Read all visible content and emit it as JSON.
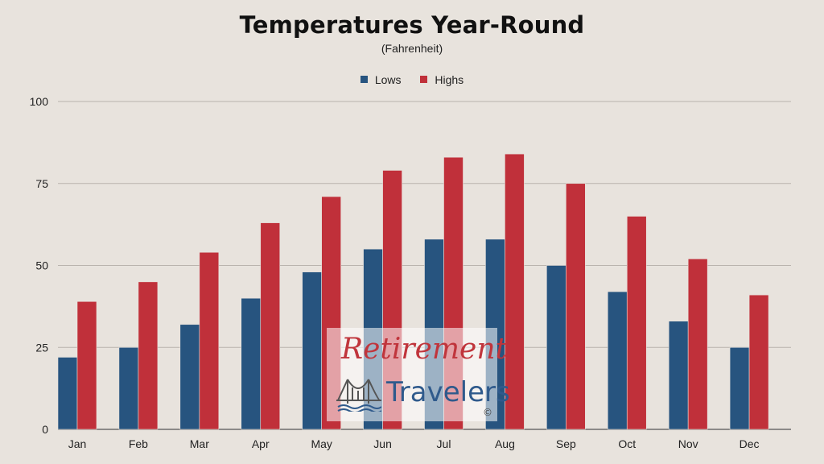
{
  "chart_data": {
    "type": "bar",
    "title": "Temperatures Year-Round",
    "subtitle": "(Fahrenheit)",
    "categories": [
      "Jan",
      "Feb",
      "Mar",
      "Apr",
      "May",
      "Jun",
      "Jul",
      "Aug",
      "Sep",
      "Oct",
      "Nov",
      "Dec"
    ],
    "series": [
      {
        "name": "Lows",
        "color": "#27547f",
        "values": [
          22,
          25,
          32,
          40,
          48,
          55,
          58,
          58,
          50,
          42,
          33,
          25
        ]
      },
      {
        "name": "Highs",
        "color": "#c0303a",
        "values": [
          39,
          45,
          54,
          63,
          71,
          79,
          83,
          84,
          75,
          65,
          52,
          41
        ]
      }
    ],
    "yticks": [
      0,
      25,
      50,
      75,
      100
    ],
    "ylim": [
      0,
      100
    ],
    "grid": true,
    "legend_position": "top-center"
  },
  "watermark": {
    "line1": "Retirement",
    "line2": "Travelers",
    "symbol": "©",
    "icon": "bridge-icon"
  }
}
